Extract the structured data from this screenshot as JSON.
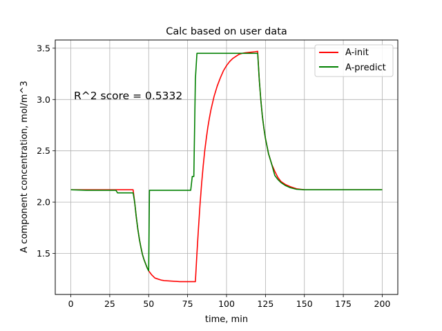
{
  "chart_data": {
    "type": "line",
    "title": "Calc based on user data",
    "xlabel": "time, min",
    "ylabel": "A component concentration, mol/m^3",
    "xlim": [
      -10,
      210
    ],
    "ylim": [
      1.1,
      3.58
    ],
    "xticks": [
      0,
      25,
      50,
      75,
      100,
      125,
      150,
      175,
      200
    ],
    "yticks": [
      1.5,
      2.0,
      2.5,
      3.0,
      3.5
    ],
    "xtick_labels": [
      "0",
      "25",
      "50",
      "75",
      "100",
      "125",
      "150",
      "175",
      "200"
    ],
    "ytick_labels": [
      "1.5",
      "2.0",
      "2.5",
      "3.0",
      "3.5"
    ],
    "grid": true,
    "legend_position": "top-right",
    "annotation": "R^2 score = 0.5332",
    "series": [
      {
        "name": "A-init",
        "color": "#ff0000",
        "points": [
          [
            0,
            2.12
          ],
          [
            10,
            2.12
          ],
          [
            20,
            2.12
          ],
          [
            30,
            2.12
          ],
          [
            35,
            2.12
          ],
          [
            40,
            2.12
          ],
          [
            41,
            2.0
          ],
          [
            42,
            1.86
          ],
          [
            43,
            1.74
          ],
          [
            44,
            1.64
          ],
          [
            45,
            1.56
          ],
          [
            46,
            1.49
          ],
          [
            47,
            1.44
          ],
          [
            48,
            1.4
          ],
          [
            49,
            1.36
          ],
          [
            50,
            1.33
          ],
          [
            52,
            1.29
          ],
          [
            54,
            1.26
          ],
          [
            56,
            1.25
          ],
          [
            58,
            1.24
          ],
          [
            60,
            1.235
          ],
          [
            65,
            1.23
          ],
          [
            70,
            1.225
          ],
          [
            75,
            1.225
          ],
          [
            80,
            1.225
          ],
          [
            81,
            1.5
          ],
          [
            82,
            1.75
          ],
          [
            83,
            1.98
          ],
          [
            84,
            2.18
          ],
          [
            85,
            2.35
          ],
          [
            86,
            2.5
          ],
          [
            87,
            2.62
          ],
          [
            88,
            2.73
          ],
          [
            89,
            2.82
          ],
          [
            90,
            2.9
          ],
          [
            92,
            3.03
          ],
          [
            94,
            3.13
          ],
          [
            96,
            3.21
          ],
          [
            98,
            3.28
          ],
          [
            100,
            3.33
          ],
          [
            102,
            3.37
          ],
          [
            104,
            3.4
          ],
          [
            106,
            3.42
          ],
          [
            108,
            3.44
          ],
          [
            110,
            3.45
          ],
          [
            112,
            3.455
          ],
          [
            115,
            3.46
          ],
          [
            118,
            3.465
          ],
          [
            120,
            3.47
          ],
          [
            121,
            3.2
          ],
          [
            122,
            3.0
          ],
          [
            123,
            2.84
          ],
          [
            124,
            2.72
          ],
          [
            125,
            2.62
          ],
          [
            127,
            2.47
          ],
          [
            129,
            2.37
          ],
          [
            131,
            2.3
          ],
          [
            133,
            2.24
          ],
          [
            135,
            2.2
          ],
          [
            138,
            2.17
          ],
          [
            141,
            2.15
          ],
          [
            145,
            2.13
          ],
          [
            150,
            2.12
          ],
          [
            160,
            2.12
          ],
          [
            180,
            2.12
          ],
          [
            200,
            2.12
          ]
        ]
      },
      {
        "name": "A-predict",
        "color": "#008000",
        "points": [
          [
            0,
            2.12
          ],
          [
            10,
            2.115
          ],
          [
            20,
            2.115
          ],
          [
            29,
            2.115
          ],
          [
            30,
            2.09
          ],
          [
            35,
            2.09
          ],
          [
            40,
            2.09
          ],
          [
            41,
            2.0
          ],
          [
            42,
            1.86
          ],
          [
            43,
            1.74
          ],
          [
            44,
            1.64
          ],
          [
            45,
            1.56
          ],
          [
            46,
            1.49
          ],
          [
            47,
            1.44
          ],
          [
            48,
            1.4
          ],
          [
            49,
            1.36
          ],
          [
            50,
            1.33
          ],
          [
            50.5,
            2.115
          ],
          [
            55,
            2.115
          ],
          [
            60,
            2.115
          ],
          [
            70,
            2.115
          ],
          [
            77,
            2.115
          ],
          [
            78,
            2.25
          ],
          [
            79,
            2.25
          ],
          [
            80,
            3.2
          ],
          [
            81,
            3.45
          ],
          [
            90,
            3.45
          ],
          [
            100,
            3.45
          ],
          [
            110,
            3.45
          ],
          [
            115,
            3.45
          ],
          [
            120,
            3.45
          ],
          [
            121,
            3.2
          ],
          [
            122,
            3.0
          ],
          [
            123,
            2.84
          ],
          [
            124,
            2.72
          ],
          [
            125,
            2.62
          ],
          [
            127,
            2.47
          ],
          [
            129,
            2.37
          ],
          [
            131,
            2.26
          ],
          [
            133,
            2.22
          ],
          [
            135,
            2.19
          ],
          [
            138,
            2.16
          ],
          [
            141,
            2.14
          ],
          [
            145,
            2.125
          ],
          [
            150,
            2.12
          ],
          [
            160,
            2.12
          ],
          [
            180,
            2.12
          ],
          [
            200,
            2.12
          ]
        ]
      }
    ]
  }
}
